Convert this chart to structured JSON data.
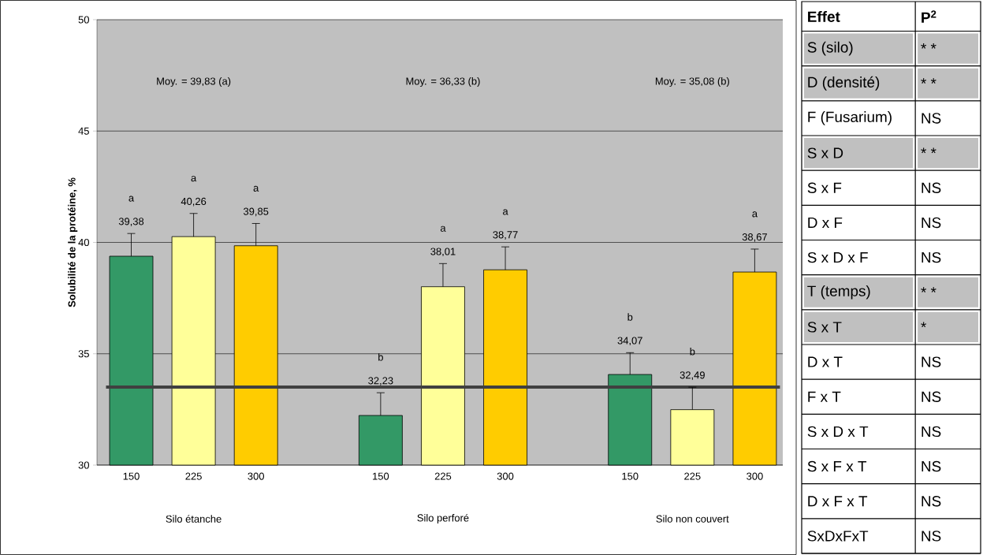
{
  "chart_data": [
    {
      "type": "bar",
      "ylabel": "Solubilité de la protéine, %",
      "categories": [
        "150",
        "225",
        "300",
        null,
        "150",
        "225",
        "300",
        null,
        "150",
        "225",
        "300"
      ],
      "values": [
        39.38,
        40.26,
        39.85,
        null,
        32.23,
        38.01,
        38.77,
        null,
        34.07,
        32.49,
        38.67
      ],
      "colors": [
        "#339966",
        "#ffff99",
        "#ffcc00",
        null,
        "#339966",
        "#ffff99",
        "#ffcc00",
        null,
        "#339966",
        "#ffff99",
        "#ffcc00"
      ],
      "value_labels": [
        "39,38",
        "40,26",
        "39,85",
        null,
        "32,23",
        "38,01",
        "38,77",
        null,
        "34,07",
        "32,49",
        "38,67"
      ],
      "errors": [
        [
          39.38,
          40.4
        ],
        [
          40.26,
          41.3
        ],
        [
          39.85,
          40.85
        ],
        null,
        [
          32.23,
          33.25
        ],
        [
          38.01,
          39.05
        ],
        [
          38.77,
          39.8
        ],
        null,
        [
          34.07,
          35.05
        ],
        [
          32.49,
          33.5
        ],
        [
          38.67,
          39.7
        ]
      ],
      "ylim": [
        30,
        50
      ],
      "yticks": [
        30,
        35,
        40,
        45,
        50
      ],
      "grid": "y",
      "ref_lines": [
        {
          "axis": "y",
          "value": 33.5,
          "color": "#404040"
        }
      ],
      "annotations": [
        "Moy. = 39,83 (a)",
        "Moy. = 36,33 (b)",
        "Moy. = 35,08 (b)",
        "Silo étanche",
        "Silo perforé",
        "Silo non couvert",
        "a",
        "a",
        "a",
        "b",
        "a",
        "a",
        "b",
        "b",
        "a"
      ]
    },
    {
      "type": "other",
      "annotations": [
        "Effet",
        "P$^{2}$"
      ],
      "categories": [
        "S (silo)",
        "D (densité)",
        "F (Fusarium)",
        "S x D",
        "S x F",
        "D x F",
        "S x D x F",
        "T (temps)",
        "S x T",
        "D x T",
        "F x T",
        "S x D x T",
        "S x F x T",
        "D x F x T",
        "SxDxFxT"
      ],
      "value_labels": [
        "* *",
        "* *",
        "NS",
        "* *",
        "NS",
        "NS",
        "NS",
        "* *",
        "*",
        "NS",
        "NS",
        "NS",
        "NS",
        "NS",
        "NS"
      ],
      "colors": [
        "#c0c0c0",
        "#c0c0c0",
        "#ffffff",
        "#c0c0c0",
        "#ffffff",
        "#ffffff",
        "#ffffff",
        "#c0c0c0",
        "#c0c0c0",
        "#ffffff",
        "#ffffff",
        "#ffffff",
        "#ffffff",
        "#ffffff",
        "#ffffff"
      ]
    }
  ]
}
